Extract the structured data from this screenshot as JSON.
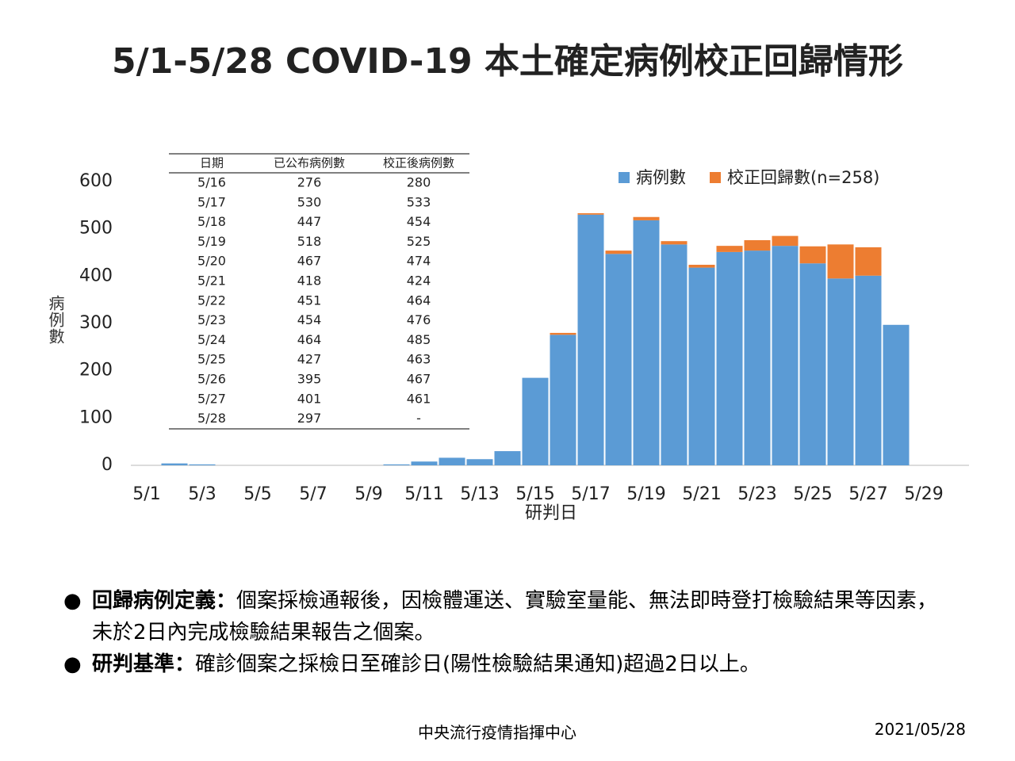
{
  "chart_data": {
    "type": "stacked-bar",
    "title": "5/1-5/28 COVID-19 本土確定病例校正回歸情形",
    "y_label": "病例數",
    "x_label": "研判日",
    "categories": [
      "5/1",
      null,
      "5/3",
      null,
      "5/5",
      null,
      "5/7",
      null,
      "5/9",
      null,
      "5/11",
      null,
      "5/13",
      null,
      "5/15",
      null,
      "5/17",
      null,
      "5/19",
      null,
      "5/21",
      null,
      "5/23",
      null,
      "5/25",
      null,
      "5/27",
      null,
      "5/29"
    ],
    "series": [
      {
        "name": "病例數",
        "color": "#5b9bd5",
        "values": [
          0,
          4,
          2,
          0,
          0,
          0,
          0,
          0,
          0,
          2,
          8,
          16,
          13,
          30,
          185,
          276,
          530,
          447,
          518,
          467,
          418,
          451,
          454,
          464,
          427,
          395,
          401,
          297,
          null
        ]
      },
      {
        "name": "校正回歸數(n=258)",
        "color": "#ed7d31",
        "values": [
          null,
          null,
          null,
          null,
          null,
          null,
          null,
          null,
          null,
          null,
          null,
          null,
          null,
          null,
          null,
          4,
          3,
          7,
          7,
          7,
          6,
          13,
          22,
          21,
          36,
          72,
          60,
          null,
          null
        ]
      }
    ],
    "ylim": [
      0,
      600
    ],
    "yticks": [
      0,
      100,
      200,
      300,
      400,
      500,
      600
    ],
    "grid": false,
    "legend": "top-right",
    "table": {
      "columns": [
        "日期",
        "已公布病例數",
        "校正後病例數"
      ],
      "rows": [
        [
          "5/16",
          276,
          280
        ],
        [
          "5/17",
          530,
          533
        ],
        [
          "5/18",
          447,
          454
        ],
        [
          "5/19",
          518,
          525
        ],
        [
          "5/20",
          467,
          474
        ],
        [
          "5/21",
          418,
          424
        ],
        [
          "5/22",
          451,
          464
        ],
        [
          "5/23",
          454,
          476
        ],
        [
          "5/24",
          464,
          485
        ],
        [
          "5/25",
          427,
          463
        ],
        [
          "5/26",
          395,
          467
        ],
        [
          "5/27",
          401,
          461
        ],
        [
          "5/28",
          297,
          "-"
        ]
      ]
    }
  },
  "notes": [
    {
      "term": "回歸病例定義：",
      "text": "個案採檢通報後，因檢體運送、實驗室量能、無法即時登打檢驗結果等因素，未於2日內完成檢驗結果報告之個案。"
    },
    {
      "term": "研判基準：",
      "text": "確診個案之採檢日至確診日(陽性檢驗結果通知)超過2日以上。"
    }
  ],
  "footer": {
    "center": "中央流行疫情指揮中心",
    "date": "2021/05/28"
  }
}
